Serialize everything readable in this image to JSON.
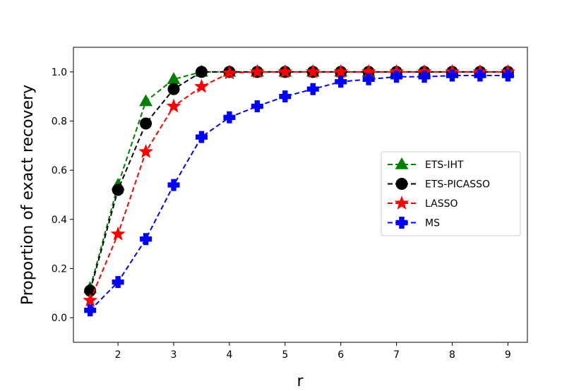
{
  "chart_data": {
    "type": "line",
    "xlabel": "r",
    "ylabel": "Proportion of exact recovery",
    "xlim": [
      1.2,
      9.35
    ],
    "ylim": [
      -0.1,
      1.1
    ],
    "xticks": [
      2,
      3,
      4,
      5,
      6,
      7,
      8,
      9
    ],
    "yticks": [
      0.0,
      0.2,
      0.4,
      0.6,
      0.8,
      1.0
    ],
    "xtick_labels": [
      "2",
      "3",
      "4",
      "5",
      "6",
      "7",
      "8",
      "9"
    ],
    "ytick_labels": [
      "0.0",
      "0.2",
      "0.4",
      "0.6",
      "0.8",
      "1.0"
    ],
    "grid": false,
    "legend_position": "center-right",
    "x": [
      1.5,
      2,
      2.5,
      3,
      3.5,
      4,
      4.5,
      5,
      5.5,
      6,
      6.5,
      7,
      7.5,
      8,
      8.5,
      9
    ],
    "series": [
      {
        "name": "ETS-IHT",
        "color": "#008000",
        "marker": "triangle",
        "values": [
          0.12,
          0.54,
          0.88,
          0.97,
          1.0,
          1.0,
          1.0,
          1.0,
          1.0,
          1.0,
          1.0,
          1.0,
          1.0,
          1.0,
          1.0,
          1.0
        ]
      },
      {
        "name": "ETS-PICASSO",
        "color": "#000000",
        "marker": "circle",
        "values": [
          0.11,
          0.52,
          0.79,
          0.93,
          1.0,
          1.0,
          1.0,
          1.0,
          1.0,
          1.0,
          1.0,
          1.0,
          1.0,
          1.0,
          1.0,
          1.0
        ]
      },
      {
        "name": "LASSO",
        "color": "#ff0000",
        "marker": "star",
        "values": [
          0.07,
          0.34,
          0.675,
          0.86,
          0.94,
          0.995,
          1.0,
          1.0,
          1.0,
          1.0,
          1.0,
          1.0,
          1.0,
          1.0,
          1.0,
          1.0
        ]
      },
      {
        "name": "MS",
        "color": "#0000ff",
        "marker": "plus",
        "values": [
          0.03,
          0.145,
          0.32,
          0.54,
          0.735,
          0.815,
          0.86,
          0.9,
          0.93,
          0.96,
          0.97,
          0.98,
          0.98,
          0.985,
          0.985,
          0.985
        ]
      }
    ]
  }
}
